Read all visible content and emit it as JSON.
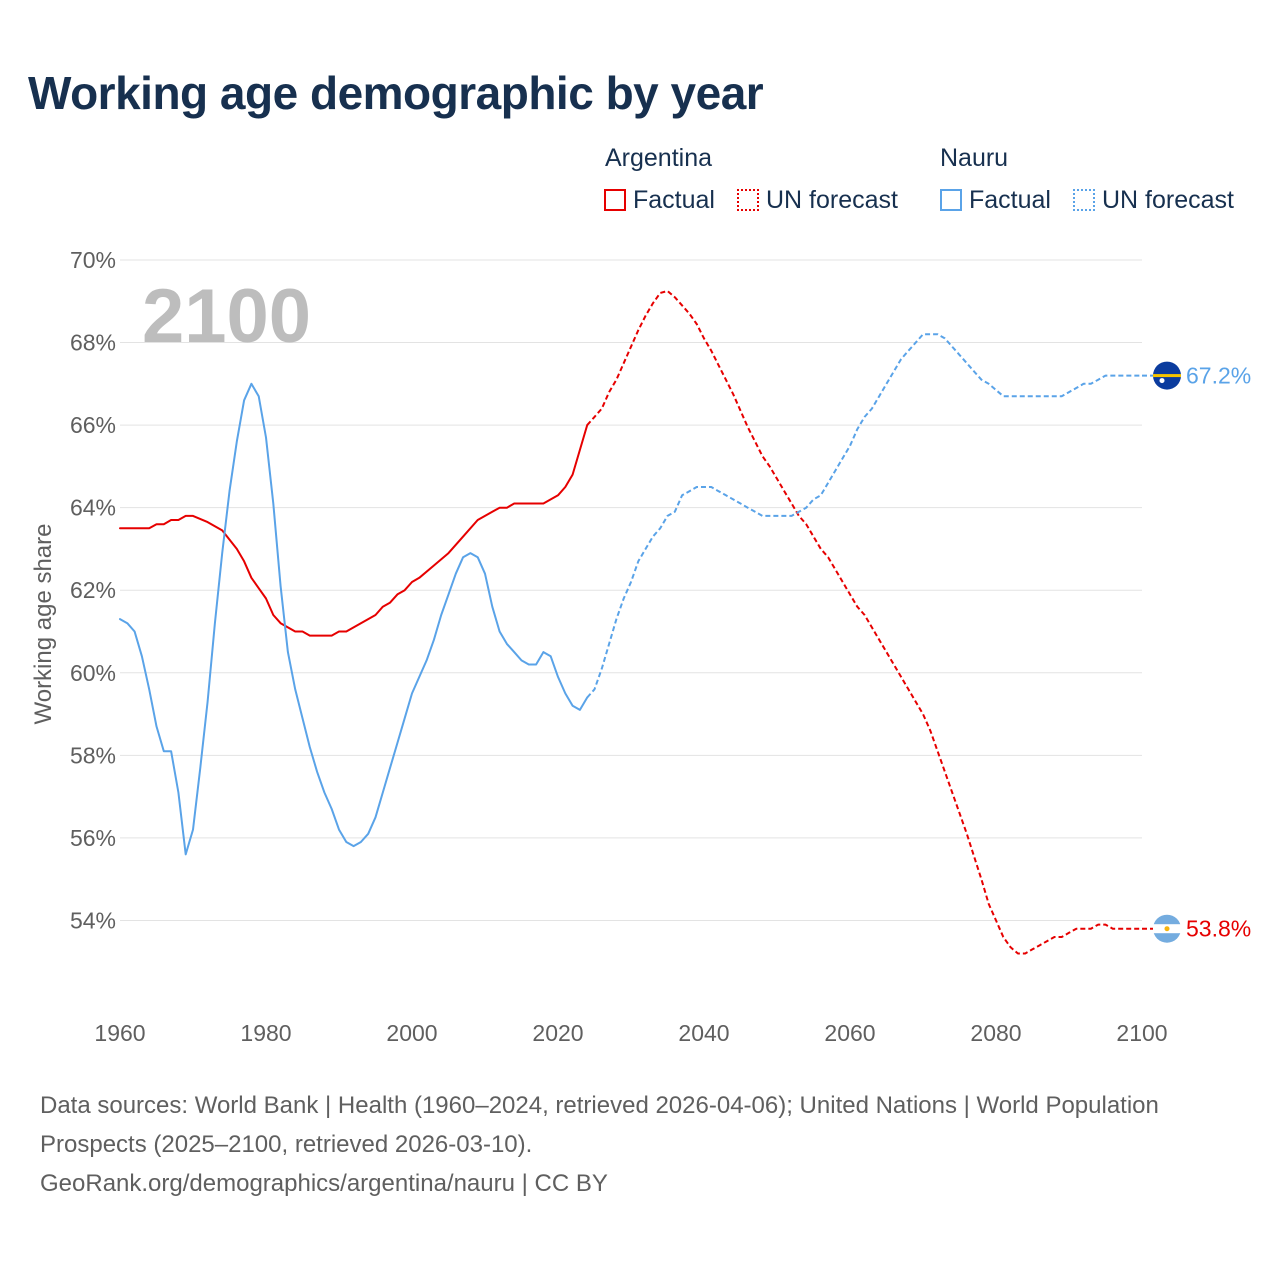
{
  "title": "Working age demographic by year",
  "legend": {
    "groups": [
      {
        "country": "Argentina",
        "color": "#e60000",
        "factual_label": "Factual",
        "forecast_label": "UN forecast"
      },
      {
        "country": "Nauru",
        "color": "#5aa3e8",
        "factual_label": "Factual",
        "forecast_label": "UN forecast"
      }
    ]
  },
  "chart_data": {
    "type": "line",
    "title": "Working age demographic by year",
    "xlabel": "",
    "ylabel": "Working age share",
    "xlim": [
      1960,
      2100
    ],
    "ylim": [
      52,
      70
    ],
    "x_ticks": [
      "1960",
      "1980",
      "2000",
      "2020",
      "2040",
      "2060",
      "2080",
      "2100"
    ],
    "y_ticks": [
      "54%",
      "56%",
      "58%",
      "60%",
      "62%",
      "64%",
      "66%",
      "68%",
      "70%"
    ],
    "y_tick_values": [
      54,
      56,
      58,
      60,
      62,
      64,
      66,
      68,
      70
    ],
    "year_watermark": "2100",
    "grid": true,
    "factual_range": "1960–2024",
    "forecast_range": "2024–2100",
    "series": [
      {
        "name": "Argentina",
        "color": "#e60000",
        "end_label": "53.8%",
        "flag": "argentina-flag-icon",
        "factual": [
          [
            1960,
            63.5
          ],
          [
            1962,
            63.5
          ],
          [
            1964,
            63.5
          ],
          [
            1965,
            63.6
          ],
          [
            1966,
            63.6
          ],
          [
            1967,
            63.7
          ],
          [
            1968,
            63.7
          ],
          [
            1969,
            63.8
          ],
          [
            1970,
            63.8
          ],
          [
            1972,
            63.65
          ],
          [
            1974,
            63.45
          ],
          [
            1976,
            63.0
          ],
          [
            1977,
            62.7
          ],
          [
            1978,
            62.3
          ],
          [
            1979,
            62.05
          ],
          [
            1980,
            61.8
          ],
          [
            1981,
            61.4
          ],
          [
            1982,
            61.2
          ],
          [
            1983,
            61.1
          ],
          [
            1984,
            61.0
          ],
          [
            1985,
            61.0
          ],
          [
            1986,
            60.9
          ],
          [
            1988,
            60.9
          ],
          [
            1989,
            60.9
          ],
          [
            1990,
            61.0
          ],
          [
            1991,
            61.0
          ],
          [
            1993,
            61.2
          ],
          [
            1995,
            61.4
          ],
          [
            1996,
            61.6
          ],
          [
            1997,
            61.7
          ],
          [
            1998,
            61.9
          ],
          [
            1999,
            62.0
          ],
          [
            2000,
            62.2
          ],
          [
            2001,
            62.3
          ],
          [
            2003,
            62.6
          ],
          [
            2005,
            62.9
          ],
          [
            2007,
            63.3
          ],
          [
            2009,
            63.7
          ],
          [
            2011,
            63.9
          ],
          [
            2012,
            64.0
          ],
          [
            2013,
            64.0
          ],
          [
            2014,
            64.1
          ],
          [
            2016,
            64.1
          ],
          [
            2018,
            64.1
          ],
          [
            2019,
            64.2
          ],
          [
            2020,
            64.3
          ],
          [
            2021,
            64.5
          ],
          [
            2022,
            64.8
          ],
          [
            2023,
            65.4
          ],
          [
            2024,
            66.0
          ]
        ],
        "forecast": [
          [
            2024,
            66.0
          ],
          [
            2025,
            66.2
          ],
          [
            2026,
            66.4
          ],
          [
            2027,
            66.8
          ],
          [
            2028,
            67.1
          ],
          [
            2029,
            67.5
          ],
          [
            2030,
            67.9
          ],
          [
            2031,
            68.3
          ],
          [
            2032,
            68.65
          ],
          [
            2033,
            68.95
          ],
          [
            2034,
            69.2
          ],
          [
            2035,
            69.25
          ],
          [
            2036,
            69.1
          ],
          [
            2037,
            68.9
          ],
          [
            2038,
            68.7
          ],
          [
            2039,
            68.45
          ],
          [
            2040,
            68.1
          ],
          [
            2041,
            67.8
          ],
          [
            2042,
            67.45
          ],
          [
            2043,
            67.1
          ],
          [
            2044,
            66.75
          ],
          [
            2045,
            66.35
          ],
          [
            2046,
            65.95
          ],
          [
            2047,
            65.6
          ],
          [
            2048,
            65.25
          ],
          [
            2049,
            65.0
          ],
          [
            2050,
            64.7
          ],
          [
            2051,
            64.4
          ],
          [
            2052,
            64.1
          ],
          [
            2053,
            63.8
          ],
          [
            2054,
            63.6
          ],
          [
            2055,
            63.3
          ],
          [
            2056,
            63.0
          ],
          [
            2057,
            62.8
          ],
          [
            2058,
            62.5
          ],
          [
            2059,
            62.2
          ],
          [
            2060,
            61.9
          ],
          [
            2061,
            61.6
          ],
          [
            2062,
            61.4
          ],
          [
            2063,
            61.1
          ],
          [
            2064,
            60.8
          ],
          [
            2065,
            60.5
          ],
          [
            2066,
            60.2
          ],
          [
            2067,
            59.9
          ],
          [
            2068,
            59.6
          ],
          [
            2069,
            59.3
          ],
          [
            2070,
            59.0
          ],
          [
            2071,
            58.6
          ],
          [
            2072,
            58.1
          ],
          [
            2073,
            57.6
          ],
          [
            2074,
            57.1
          ],
          [
            2075,
            56.6
          ],
          [
            2076,
            56.1
          ],
          [
            2077,
            55.55
          ],
          [
            2078,
            55.0
          ],
          [
            2079,
            54.4
          ],
          [
            2080,
            54.0
          ],
          [
            2081,
            53.6
          ],
          [
            2082,
            53.35
          ],
          [
            2083,
            53.2
          ],
          [
            2084,
            53.2
          ],
          [
            2085,
            53.3
          ],
          [
            2086,
            53.4
          ],
          [
            2087,
            53.5
          ],
          [
            2088,
            53.6
          ],
          [
            2089,
            53.6
          ],
          [
            2090,
            53.7
          ],
          [
            2091,
            53.8
          ],
          [
            2092,
            53.8
          ],
          [
            2093,
            53.8
          ],
          [
            2094,
            53.9
          ],
          [
            2095,
            53.9
          ],
          [
            2096,
            53.8
          ],
          [
            2097,
            53.8
          ],
          [
            2098,
            53.8
          ],
          [
            2099,
            53.8
          ],
          [
            2100,
            53.8
          ]
        ]
      },
      {
        "name": "Nauru",
        "color": "#5aa3e8",
        "end_label": "67.2%",
        "flag": "nauru-flag-icon",
        "factual": [
          [
            1960,
            61.3
          ],
          [
            1961,
            61.2
          ],
          [
            1962,
            61.0
          ],
          [
            1963,
            60.4
          ],
          [
            1964,
            59.6
          ],
          [
            1965,
            58.7
          ],
          [
            1966,
            58.1
          ],
          [
            1967,
            58.1
          ],
          [
            1968,
            57.1
          ],
          [
            1969,
            55.6
          ],
          [
            1970,
            56.2
          ],
          [
            1971,
            57.7
          ],
          [
            1972,
            59.3
          ],
          [
            1973,
            61.2
          ],
          [
            1974,
            62.9
          ],
          [
            1975,
            64.4
          ],
          [
            1976,
            65.6
          ],
          [
            1977,
            66.6
          ],
          [
            1978,
            67.0
          ],
          [
            1979,
            66.7
          ],
          [
            1980,
            65.7
          ],
          [
            1981,
            64.1
          ],
          [
            1982,
            62.1
          ],
          [
            1983,
            60.5
          ],
          [
            1984,
            59.6
          ],
          [
            1985,
            58.9
          ],
          [
            1986,
            58.2
          ],
          [
            1987,
            57.6
          ],
          [
            1988,
            57.1
          ],
          [
            1989,
            56.7
          ],
          [
            1990,
            56.2
          ],
          [
            1991,
            55.9
          ],
          [
            1992,
            55.8
          ],
          [
            1993,
            55.9
          ],
          [
            1994,
            56.1
          ],
          [
            1995,
            56.5
          ],
          [
            1996,
            57.1
          ],
          [
            1997,
            57.7
          ],
          [
            1998,
            58.3
          ],
          [
            1999,
            58.9
          ],
          [
            2000,
            59.5
          ],
          [
            2001,
            59.9
          ],
          [
            2002,
            60.3
          ],
          [
            2003,
            60.8
          ],
          [
            2004,
            61.4
          ],
          [
            2005,
            61.9
          ],
          [
            2006,
            62.4
          ],
          [
            2007,
            62.8
          ],
          [
            2008,
            62.9
          ],
          [
            2009,
            62.8
          ],
          [
            2010,
            62.4
          ],
          [
            2011,
            61.6
          ],
          [
            2012,
            61.0
          ],
          [
            2013,
            60.7
          ],
          [
            2014,
            60.5
          ],
          [
            2015,
            60.3
          ],
          [
            2016,
            60.2
          ],
          [
            2017,
            60.2
          ],
          [
            2018,
            60.5
          ],
          [
            2019,
            60.4
          ],
          [
            2020,
            59.9
          ],
          [
            2021,
            59.5
          ],
          [
            2022,
            59.2
          ],
          [
            2023,
            59.1
          ],
          [
            2024,
            59.4
          ]
        ],
        "forecast": [
          [
            2024,
            59.4
          ],
          [
            2025,
            59.6
          ],
          [
            2026,
            60.1
          ],
          [
            2027,
            60.7
          ],
          [
            2028,
            61.3
          ],
          [
            2029,
            61.8
          ],
          [
            2030,
            62.2
          ],
          [
            2031,
            62.7
          ],
          [
            2032,
            63.0
          ],
          [
            2033,
            63.3
          ],
          [
            2034,
            63.5
          ],
          [
            2035,
            63.8
          ],
          [
            2036,
            63.9
          ],
          [
            2037,
            64.3
          ],
          [
            2038,
            64.4
          ],
          [
            2039,
            64.5
          ],
          [
            2040,
            64.5
          ],
          [
            2041,
            64.5
          ],
          [
            2042,
            64.4
          ],
          [
            2043,
            64.3
          ],
          [
            2044,
            64.2
          ],
          [
            2045,
            64.1
          ],
          [
            2046,
            64.0
          ],
          [
            2047,
            63.9
          ],
          [
            2048,
            63.8
          ],
          [
            2049,
            63.8
          ],
          [
            2050,
            63.8
          ],
          [
            2051,
            63.8
          ],
          [
            2052,
            63.8
          ],
          [
            2053,
            63.9
          ],
          [
            2054,
            64.0
          ],
          [
            2055,
            64.2
          ],
          [
            2056,
            64.3
          ],
          [
            2057,
            64.6
          ],
          [
            2058,
            64.9
          ],
          [
            2059,
            65.2
          ],
          [
            2060,
            65.5
          ],
          [
            2061,
            65.9
          ],
          [
            2062,
            66.2
          ],
          [
            2063,
            66.4
          ],
          [
            2064,
            66.7
          ],
          [
            2065,
            67.0
          ],
          [
            2066,
            67.3
          ],
          [
            2067,
            67.6
          ],
          [
            2068,
            67.8
          ],
          [
            2069,
            68.0
          ],
          [
            2070,
            68.2
          ],
          [
            2071,
            68.2
          ],
          [
            2072,
            68.2
          ],
          [
            2073,
            68.1
          ],
          [
            2074,
            67.9
          ],
          [
            2075,
            67.7
          ],
          [
            2076,
            67.5
          ],
          [
            2077,
            67.3
          ],
          [
            2078,
            67.1
          ],
          [
            2079,
            67.0
          ],
          [
            2080,
            66.85
          ],
          [
            2081,
            66.7
          ],
          [
            2082,
            66.7
          ],
          [
            2083,
            66.7
          ],
          [
            2084,
            66.7
          ],
          [
            2085,
            66.7
          ],
          [
            2086,
            66.7
          ],
          [
            2087,
            66.7
          ],
          [
            2088,
            66.7
          ],
          [
            2089,
            66.7
          ],
          [
            2090,
            66.8
          ],
          [
            2091,
            66.9
          ],
          [
            2092,
            67.0
          ],
          [
            2093,
            67.0
          ],
          [
            2094,
            67.1
          ],
          [
            2095,
            67.2
          ],
          [
            2096,
            67.2
          ],
          [
            2097,
            67.2
          ],
          [
            2098,
            67.2
          ],
          [
            2099,
            67.2
          ],
          [
            2100,
            67.2
          ]
        ]
      }
    ]
  },
  "footer": {
    "source_line": "Data sources: World Bank | Health (1960–2024, retrieved 2026-04-06); United Nations | World Population Prospects (2025–2100, retrieved 2026-03-10).",
    "credit_line": "GeoRank.org/demographics/argentina/nauru | CC BY"
  }
}
